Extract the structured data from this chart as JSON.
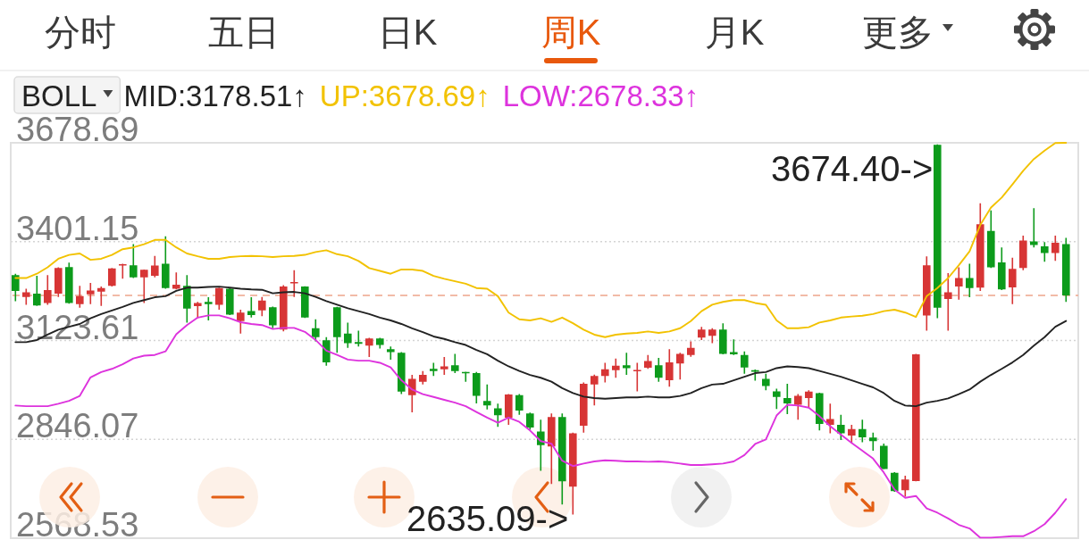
{
  "chart_data": {
    "type": "candlestick",
    "categories": [
      null,
      null,
      null,
      null,
      null,
      null,
      null,
      null,
      null,
      null,
      null,
      null,
      null,
      null,
      null,
      null,
      null,
      null,
      null,
      null,
      null,
      null,
      null,
      null,
      null,
      null,
      null,
      null,
      null,
      null,
      null,
      null,
      null,
      null,
      null,
      null,
      null,
      null,
      null,
      null,
      null,
      null,
      null,
      null,
      null,
      null,
      null,
      null,
      null,
      null,
      null,
      null,
      null,
      null,
      null,
      null,
      null,
      null,
      null,
      null,
      null,
      null,
      null,
      null,
      null,
      null,
      null,
      null,
      null,
      null,
      null,
      null,
      null,
      null,
      null,
      null,
      null,
      null,
      null,
      null,
      null,
      null,
      null,
      null,
      null,
      null,
      null,
      null,
      null,
      null,
      null,
      null,
      null,
      null,
      null,
      null,
      null,
      null,
      null
    ],
    "ohlc": [
      [
        3307,
        3311,
        3234,
        3263
      ],
      [
        3246,
        3269,
        3224,
        3259
      ],
      [
        3255,
        3305,
        3221,
        3222
      ],
      [
        3229,
        3307,
        3224,
        3265
      ],
      [
        3255,
        3329,
        3246,
        3327
      ],
      [
        3330,
        3342,
        3227,
        3229
      ],
      [
        3226,
        3277,
        3216,
        3248
      ],
      [
        3253,
        3285,
        3226,
        3264
      ],
      [
        3261,
        3275,
        3221,
        3271
      ],
      [
        3277,
        3327,
        3275,
        3326
      ],
      [
        3334,
        3339,
        3297,
        3338
      ],
      [
        3335,
        3394,
        3299,
        3301
      ],
      [
        3301,
        3323,
        3229,
        3322
      ],
      [
        3305,
        3361,
        3301,
        3334
      ],
      [
        3339,
        3416,
        3269,
        3271
      ],
      [
        3269,
        3315,
        3267,
        3280
      ],
      [
        3277,
        3307,
        3174,
        3213
      ],
      [
        3220,
        3232,
        3186,
        3229
      ],
      [
        3232,
        3245,
        3180,
        3226
      ],
      [
        3224,
        3272,
        3210,
        3271
      ],
      [
        3269,
        3271,
        3195,
        3196
      ],
      [
        3178,
        3210,
        3143,
        3202
      ],
      [
        3206,
        3245,
        3188,
        3195
      ],
      [
        3208,
        3246,
        3192,
        3236
      ],
      [
        3217,
        3219,
        3158,
        3166
      ],
      [
        3154,
        3279,
        3149,
        3275
      ],
      [
        3284,
        3321,
        3246,
        3288
      ],
      [
        3275,
        3276,
        3187,
        3188
      ],
      [
        3158,
        3183,
        3121,
        3133
      ],
      [
        3124,
        3133,
        3053,
        3062
      ],
      [
        3217,
        3218,
        3089,
        3133
      ],
      [
        3143,
        3174,
        3103,
        3116
      ],
      [
        3119,
        3151,
        3107,
        3114
      ],
      [
        3109,
        3131,
        3077,
        3129
      ],
      [
        3129,
        3131,
        3101,
        3111
      ],
      [
        3099,
        3107,
        3070,
        3091
      ],
      [
        3089,
        3091,
        2973,
        2980
      ],
      [
        2970,
        3027,
        2922,
        3016
      ],
      [
        3008,
        3038,
        3000,
        3027
      ],
      [
        3044,
        3061,
        3024,
        3038
      ],
      [
        3043,
        3077,
        3027,
        3051
      ],
      [
        3054,
        3086,
        3032,
        3038
      ],
      [
        3035,
        3036,
        3008,
        3032
      ],
      [
        3032,
        3035,
        2947,
        2968
      ],
      [
        2954,
        3000,
        2930,
        2941
      ],
      [
        2933,
        2946,
        2881,
        2914
      ],
      [
        2907,
        2973,
        2887,
        2972
      ],
      [
        2970,
        2973,
        2915,
        2927
      ],
      [
        2919,
        2921,
        2873,
        2879
      ],
      [
        2868,
        2901,
        2758,
        2830
      ],
      [
        2826,
        2919,
        2721,
        2909
      ],
      [
        2909,
        2919,
        2663,
        2728
      ],
      [
        2713,
        2865,
        2635.09,
        2863
      ],
      [
        2884,
        3006,
        2865,
        3002
      ],
      [
        3000,
        3028,
        2941,
        3024
      ],
      [
        3024,
        3061,
        3006,
        3043
      ],
      [
        3040,
        3073,
        3019,
        3053
      ],
      [
        3054,
        3089,
        3027,
        3046
      ],
      [
        3038,
        3061,
        2981,
        3040
      ],
      [
        3047,
        3083,
        3044,
        3066
      ],
      [
        3054,
        3075,
        3008,
        3019
      ],
      [
        3012,
        3099,
        2994,
        3062
      ],
      [
        3059,
        3089,
        3014,
        3086
      ],
      [
        3083,
        3121,
        3078,
        3103
      ],
      [
        3132,
        3162,
        3125,
        3154
      ],
      [
        3137,
        3158,
        3116,
        3154
      ],
      [
        3154,
        3172,
        3085,
        3086
      ],
      [
        3091,
        3127,
        3083,
        3085
      ],
      [
        3083,
        3093,
        3030,
        3048
      ],
      [
        3040,
        3042,
        3011,
        3036
      ],
      [
        3016,
        3030,
        2984,
        2996
      ],
      [
        2981,
        2988,
        2931,
        2965
      ],
      [
        2962,
        3002,
        2917,
        2947
      ],
      [
        2943,
        2973,
        2901,
        2968
      ],
      [
        2962,
        2984,
        2935,
        2980
      ],
      [
        2976,
        2977,
        2871,
        2889
      ],
      [
        2887,
        2946,
        2863,
        2903
      ],
      [
        2887,
        2915,
        2844,
        2863
      ],
      [
        2857,
        2887,
        2834,
        2875
      ],
      [
        2875,
        2901,
        2838,
        2852
      ],
      [
        2851,
        2865,
        2814,
        2841
      ],
      [
        2828,
        2834,
        2762,
        2763
      ],
      [
        2752,
        2754,
        2699,
        2701
      ],
      [
        2703,
        2744,
        2685,
        2733
      ],
      [
        2729,
        3086,
        2728,
        3085
      ],
      [
        3194,
        3360,
        3151,
        3335
      ],
      [
        3673,
        3674.4,
        3186,
        3216
      ],
      [
        3240,
        3313,
        3151,
        3259
      ],
      [
        3275,
        3329,
        3238,
        3299
      ],
      [
        3299,
        3339,
        3245,
        3271
      ],
      [
        3272,
        3509,
        3263,
        3450
      ],
      [
        3431,
        3489,
        3327,
        3329
      ],
      [
        3343,
        3385,
        3265,
        3267
      ],
      [
        3273,
        3356,
        3226,
        3325
      ],
      [
        3327,
        3418,
        3321,
        3404
      ],
      [
        3402,
        3495,
        3385,
        3392
      ],
      [
        3388,
        3400,
        3345,
        3369
      ],
      [
        3369,
        3418,
        3347,
        3398
      ],
      [
        3394,
        3412,
        3232,
        3250
      ]
    ],
    "colors": [
      "#0c9b1b",
      "#d73535",
      "#0c9b1b",
      "#d73535",
      "#d73535",
      "#0c9b1b",
      "#d73535",
      "#d73535",
      "#d73535",
      "#d73535",
      "#d73535",
      "#0c9b1b",
      "#d73535",
      "#d73535",
      "#0c9b1b",
      "#d73535",
      "#0c9b1b",
      "#d73535",
      "#0c9b1b",
      "#d73535",
      "#0c9b1b",
      "#d73535",
      "#0c9b1b",
      "#d73535",
      "#0c9b1b",
      "#d73535",
      "#d73535",
      "#0c9b1b",
      "#0c9b1b",
      "#0c9b1b",
      "#0c9b1b",
      "#0c9b1b",
      "#0c9b1b",
      "#d73535",
      "#0c9b1b",
      "#0c9b1b",
      "#0c9b1b",
      "#d73535",
      "#d73535",
      "#0c9b1b",
      "#d73535",
      "#0c9b1b",
      "#0c9b1b",
      "#0c9b1b",
      "#0c9b1b",
      "#0c9b1b",
      "#d73535",
      "#0c9b1b",
      "#0c9b1b",
      "#0c9b1b",
      "#d73535",
      "#0c9b1b",
      "#d73535",
      "#d73535",
      "#d73535",
      "#d73535",
      "#d73535",
      "#0c9b1b",
      "#d73535",
      "#d73535",
      "#0c9b1b",
      "#d73535",
      "#d73535",
      "#d73535",
      "#d73535",
      "#d73535",
      "#0c9b1b",
      "#0c9b1b",
      "#0c9b1b",
      "#0c9b1b",
      "#0c9b1b",
      "#0c9b1b",
      "#0c9b1b",
      "#d73535",
      "#d73535",
      "#0c9b1b",
      "#d73535",
      "#0c9b1b",
      "#d73535",
      "#0c9b1b",
      "#0c9b1b",
      "#0c9b1b",
      "#0c9b1b",
      "#d73535",
      "#d73535",
      "#d73535",
      "#0c9b1b",
      "#d73535",
      "#d73535",
      "#0c9b1b",
      "#d73535",
      "#0c9b1b",
      "#0c9b1b",
      "#d73535",
      "#d73535",
      "#0c9b1b",
      "#0c9b1b",
      "#d73535",
      "#0c9b1b"
    ],
    "series": [
      {
        "name": "MID:3178.51↑",
        "type": "line",
        "color": "#222222",
        "values": [
          3119,
          3119,
          3125,
          3140,
          3154,
          3162,
          3170,
          3186,
          3198,
          3208,
          3218,
          3229,
          3237,
          3245,
          3248,
          3263,
          3272,
          3272,
          3274,
          3275,
          3272,
          3269,
          3267,
          3266,
          3256,
          3259,
          3260,
          3256,
          3246,
          3234,
          3224,
          3214,
          3206,
          3198,
          3188,
          3180,
          3170,
          3158,
          3147,
          3135,
          3128,
          3119,
          3111,
          3097,
          3085,
          3067,
          3051,
          3038,
          3027,
          3019,
          3008,
          2990,
          2976,
          2966,
          2962,
          2960,
          2962,
          2964,
          2964,
          2966,
          2964,
          2964,
          2968,
          2976,
          2990,
          3000,
          3002,
          3012,
          3022,
          3032,
          3035,
          3046,
          3051,
          3049,
          3046,
          3038,
          3030,
          3022,
          3012,
          3002,
          2992,
          2976,
          2954,
          2941,
          2939,
          2949,
          2954,
          2961,
          2973,
          2986,
          3008,
          3027,
          3044,
          3062,
          3083,
          3109,
          3133,
          3162,
          3178.51
        ]
      },
      {
        "name": "UP:3678.69↑",
        "type": "line",
        "color": "#f2c200",
        "values": [
          3299,
          3299,
          3311,
          3329,
          3353,
          3364,
          3368,
          3350,
          3353,
          3364,
          3380,
          3385,
          3394,
          3406,
          3406,
          3385,
          3368,
          3360,
          3353,
          3353,
          3358,
          3360,
          3361,
          3360,
          3358,
          3360,
          3361,
          3364,
          3372,
          3377,
          3366,
          3360,
          3347,
          3327,
          3319,
          3311,
          3323,
          3323,
          3319,
          3305,
          3297,
          3290,
          3283,
          3271,
          3269,
          3248,
          3202,
          3183,
          3180,
          3186,
          3176,
          3188,
          3172,
          3154,
          3140,
          3133,
          3140,
          3143,
          3145,
          3149,
          3145,
          3149,
          3158,
          3178,
          3206,
          3224,
          3232,
          3237,
          3237,
          3229,
          3224,
          3180,
          3158,
          3158,
          3161,
          3174,
          3180,
          3188,
          3191,
          3193,
          3198,
          3206,
          3210,
          3202,
          3190,
          3248,
          3271,
          3299,
          3335,
          3374,
          3448,
          3497,
          3525,
          3562,
          3600,
          3633,
          3657,
          3678,
          3678.69
        ]
      },
      {
        "name": "LOW:2678.33↑",
        "type": "line",
        "color": "#dd33dd",
        "values": [
          2941,
          2939,
          2939,
          2939,
          2946,
          2954,
          2968,
          3020,
          3035,
          3044,
          3057,
          3073,
          3081,
          3083,
          3093,
          3141,
          3167,
          3188,
          3194,
          3194,
          3186,
          3175,
          3170,
          3167,
          3156,
          3159,
          3159,
          3148,
          3125,
          3095,
          3083,
          3070,
          3067,
          3067,
          3061,
          3048,
          3012,
          2986,
          2973,
          2965,
          2957,
          2949,
          2939,
          2923,
          2907,
          2893,
          2907,
          2895,
          2871,
          2841,
          2834,
          2786,
          2771,
          2778,
          2784,
          2787,
          2786,
          2784,
          2784,
          2783,
          2784,
          2782,
          2778,
          2774,
          2774,
          2776,
          2778,
          2784,
          2802,
          2833,
          2846,
          2913,
          2943,
          2941,
          2935,
          2911,
          2883,
          2859,
          2836,
          2814,
          2792,
          2753,
          2705,
          2682,
          2687,
          2652,
          2640,
          2624,
          2606,
          2596,
          2570,
          2570,
          2572,
          2574,
          2574,
          2588,
          2608,
          2640,
          2678.33
        ]
      }
    ],
    "legend_title": "BOLL",
    "legend": "top left",
    "ylim": [
      2568.53,
      3678.69
    ],
    "yticks": [
      3678.69,
      3401.15,
      3123.61,
      2846.07,
      2568.53
    ],
    "grid": "y",
    "tick_labels": "y",
    "ref_lines": [
      {
        "axis": "y",
        "value": 3250,
        "color": "#eea58a",
        "line_style": "dashed"
      }
    ],
    "annotations": [
      "分时",
      "五日",
      "日K",
      "周K",
      "月K",
      "更多",
      "3674.40->",
      "2635.09->"
    ]
  }
}
